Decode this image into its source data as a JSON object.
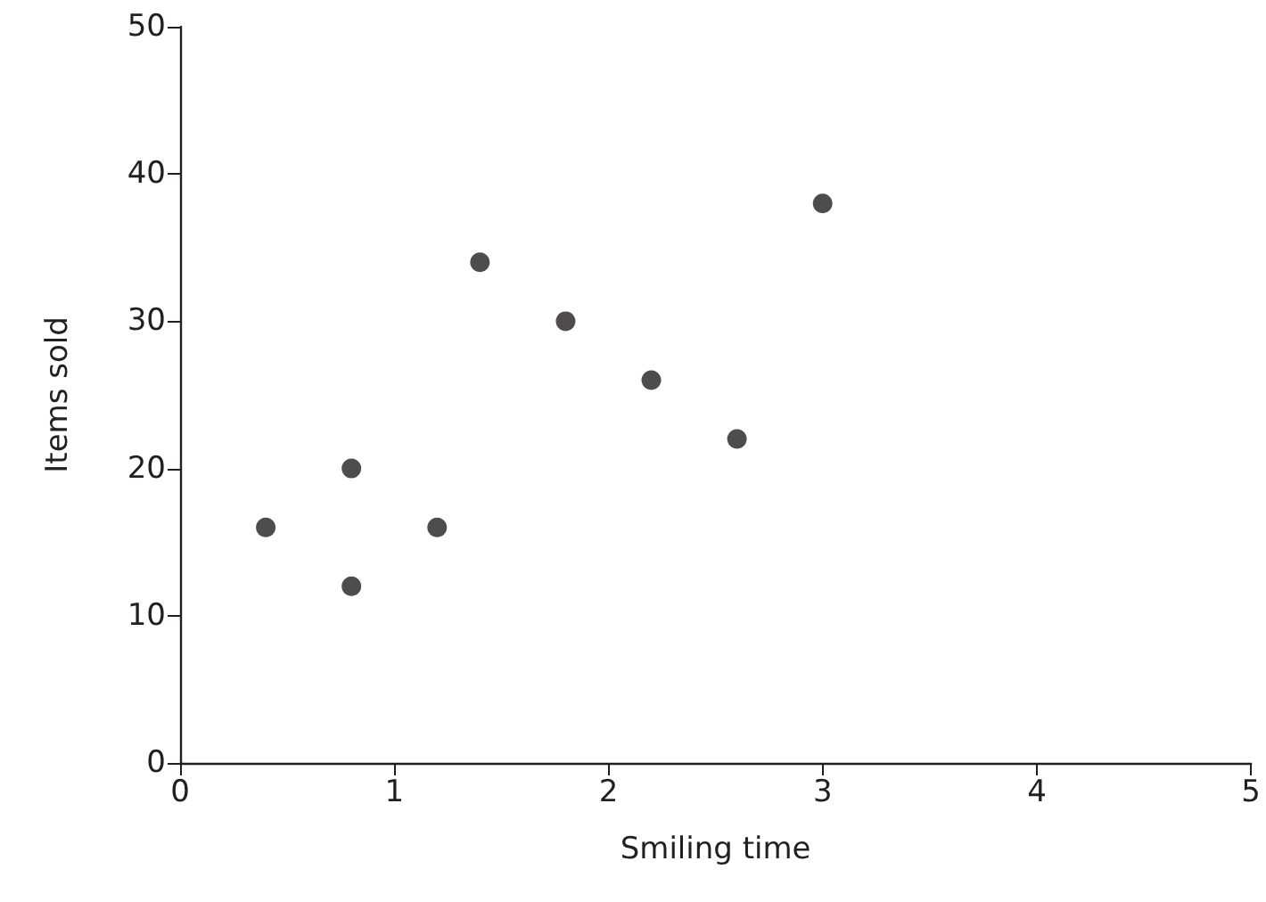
{
  "chart_data": {
    "type": "scatter",
    "xlabel": "Smiling time",
    "ylabel": "Items sold",
    "x": [
      0.4,
      0.8,
      0.8,
      1.2,
      1.4,
      1.8,
      2.2,
      2.6,
      3
    ],
    "values": [
      16,
      20,
      12,
      16,
      34,
      30,
      26,
      22,
      38
    ],
    "color": "#231f20",
    "marker": "circle",
    "grid": false,
    "xlim": [
      0,
      5
    ],
    "xticks": [
      0,
      1,
      2,
      3,
      4,
      5
    ],
    "ylim": [
      0,
      50
    ],
    "yticks": [
      0,
      10,
      20,
      30,
      40,
      50
    ]
  }
}
